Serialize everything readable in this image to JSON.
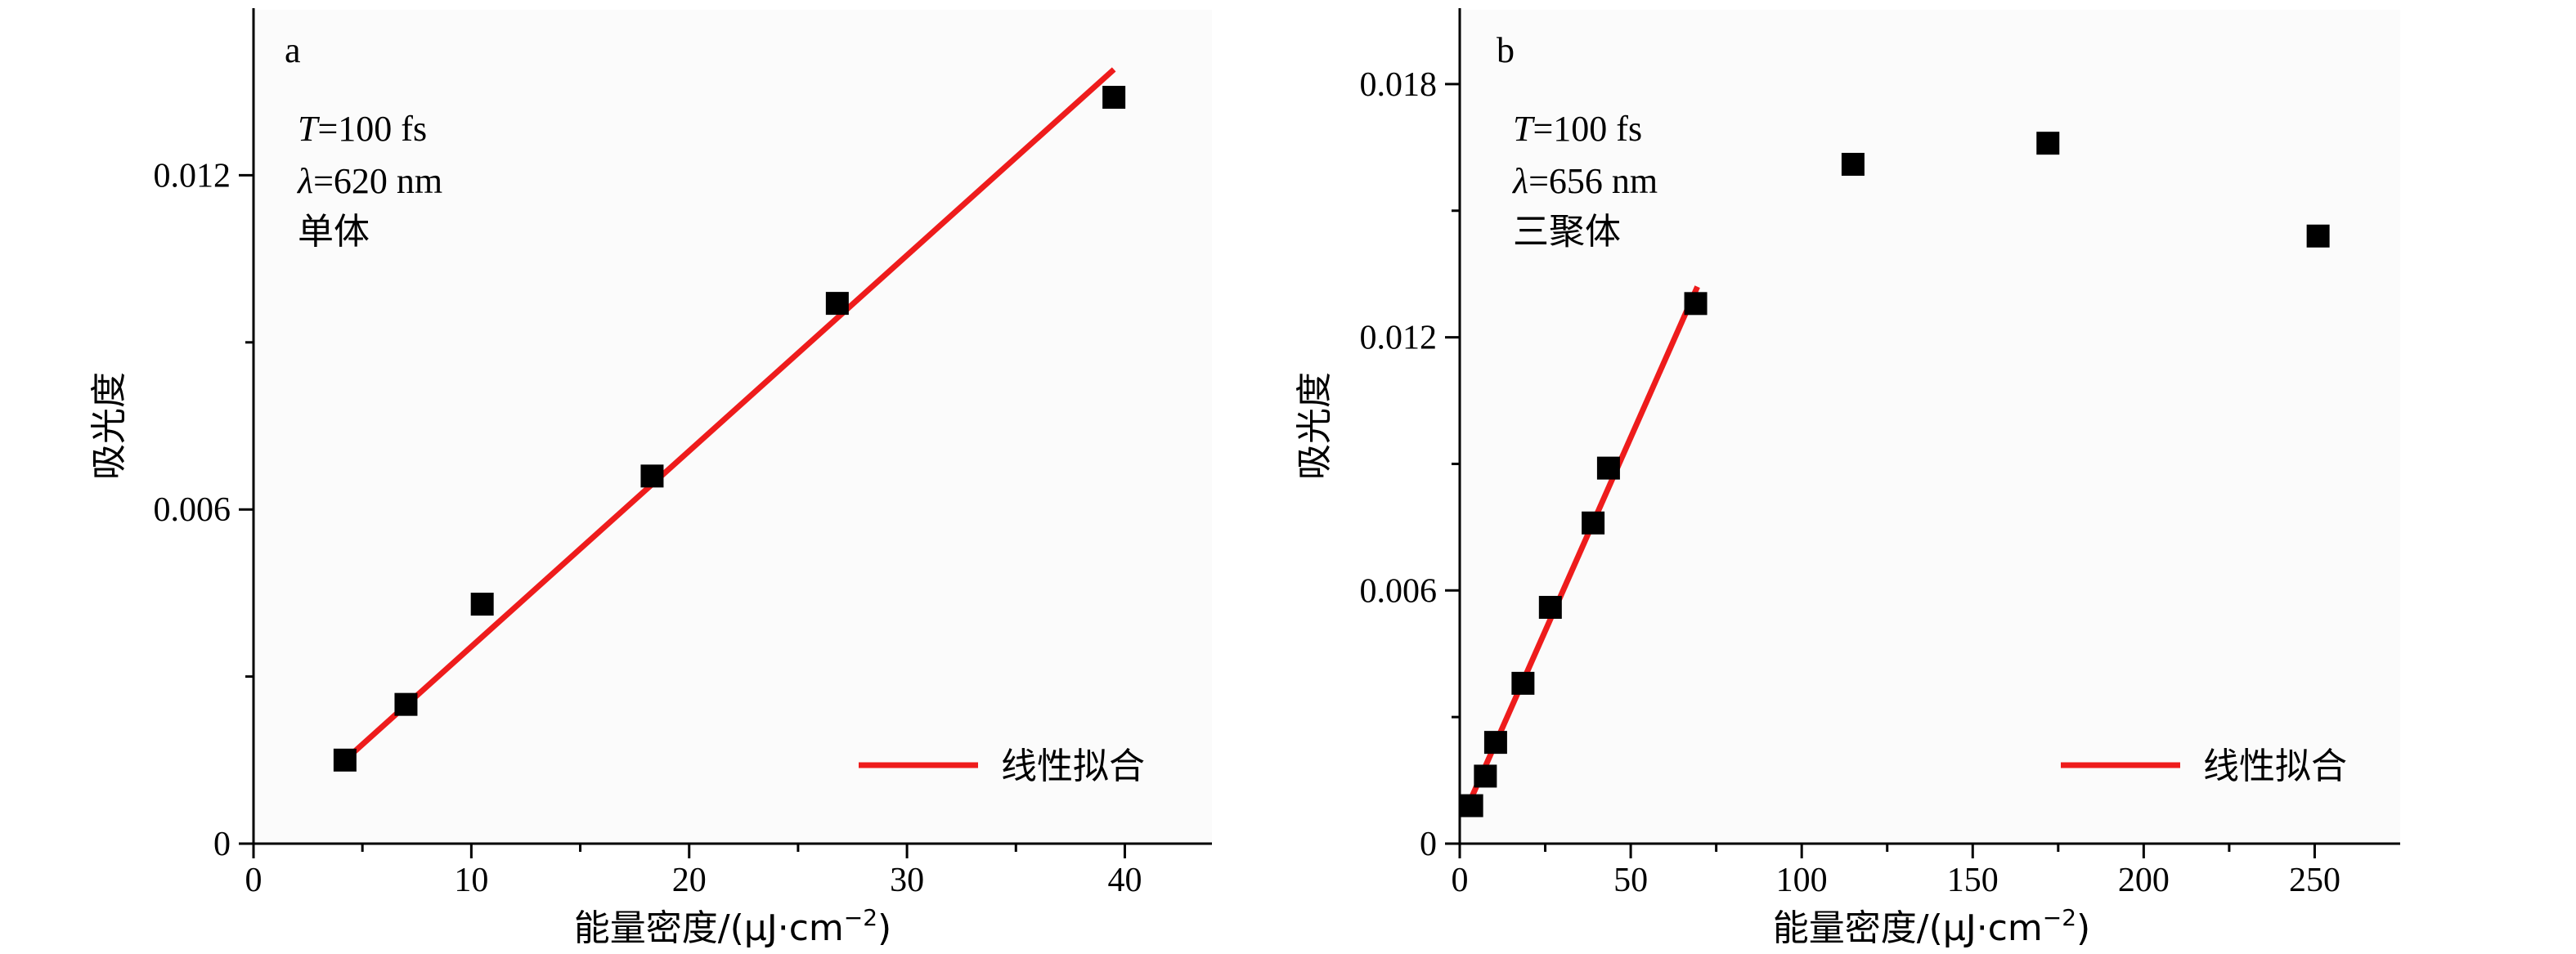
{
  "chart_data": [
    {
      "type": "scatter",
      "panel_label": "a",
      "annotations": {
        "temp_prefix": "T",
        "temp_value": "=100 fs",
        "wl_prefix": "λ",
        "wl_value": "=620 nm",
        "species": "单体"
      },
      "xlabel_main": "能量密度/(μJ·cm",
      "xlabel_sup": "−2",
      "xlabel_end": ")",
      "ylabel": "吸光度",
      "xlim": [
        0,
        44
      ],
      "ylim": [
        0,
        0.015
      ],
      "x_ticks": [
        0,
        10,
        20,
        30,
        40
      ],
      "x_tick_labels": [
        "0",
        "10",
        "20",
        "30",
        "40"
      ],
      "y_ticks": [
        0,
        0.006,
        0.012
      ],
      "y_tick_labels": [
        "0",
        "0.006",
        "0.012"
      ],
      "x_minor_ticks": [
        5,
        15,
        25,
        35
      ],
      "y_minor_ticks": [
        0.003,
        0.009
      ],
      "grid": false,
      "legend_position": "bottom-right",
      "series": [
        {
          "kind": "points",
          "x": [
            4.2,
            7.0,
            10.5,
            18.3,
            26.8,
            39.5
          ],
          "y": [
            0.0015,
            0.0025,
            0.0043,
            0.0066,
            0.0097,
            0.0134
          ]
        },
        {
          "name": "线性拟合",
          "kind": "line",
          "color": "#ee1c1c",
          "x": [
            4.2,
            39.5
          ],
          "y": [
            0.0015,
            0.0139
          ]
        }
      ]
    },
    {
      "type": "scatter",
      "panel_label": "b",
      "annotations": {
        "temp_prefix": "T",
        "temp_value": "=100 fs",
        "wl_prefix": "λ",
        "wl_value": "=656 nm",
        "species": "三聚体"
      },
      "xlabel_main": "能量密度/(μJ·cm",
      "xlabel_sup": "−2",
      "xlabel_end": ")",
      "ylabel": "吸光度",
      "xlim": [
        0,
        275
      ],
      "ylim": [
        0,
        0.0198
      ],
      "x_ticks": [
        0,
        50,
        100,
        150,
        200,
        250
      ],
      "x_tick_labels": [
        "0",
        "50",
        "100",
        "150",
        "200",
        "250"
      ],
      "y_ticks": [
        0,
        0.006,
        0.012,
        0.018
      ],
      "y_tick_labels": [
        "0",
        "0.006",
        "0.012",
        "0.018"
      ],
      "x_minor_ticks": [
        25,
        75,
        125,
        175,
        225
      ],
      "y_minor_ticks": [
        0.003,
        0.009,
        0.015
      ],
      "grid": false,
      "legend_position": "bottom-right",
      "series": [
        {
          "kind": "points",
          "x": [
            3.5,
            7.5,
            10.5,
            18.5,
            26.5,
            39.0,
            43.5,
            69.0,
            115.0,
            172.0,
            251.0
          ],
          "y": [
            0.0009,
            0.0016,
            0.0024,
            0.0038,
            0.0056,
            0.0076,
            0.0089,
            0.0128,
            0.0161,
            0.0166,
            0.0144
          ]
        },
        {
          "name": "线性拟合",
          "kind": "line",
          "color": "#ee1c1c",
          "x": [
            3.5,
            69.5
          ],
          "y": [
            0.0011,
            0.0132
          ]
        }
      ]
    }
  ]
}
